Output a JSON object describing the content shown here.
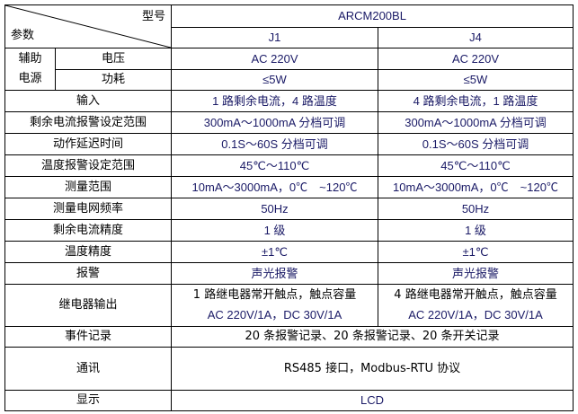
{
  "header": {
    "model_label": "型号",
    "param_label": "参数",
    "model": "ARCM200BL",
    "variants": [
      "J1",
      "J4"
    ]
  },
  "aux_power": {
    "group_label_1": "辅助",
    "group_label_2": "电源",
    "rows": [
      {
        "label": "电压",
        "j1": "AC 220V",
        "j4": "AC 220V"
      },
      {
        "label": "功耗",
        "j1": "≤5W",
        "j4": "≤5W"
      }
    ]
  },
  "rows": [
    {
      "label": "输入",
      "j1": "1 路剩余电流，4 路温度",
      "j4": "4 路剩余电流，1 路温度"
    },
    {
      "label": "剩余电流报警设定范围",
      "j1": "300mA～1000mA 分档可调",
      "j4": "300mA～1000mA 分档可调"
    },
    {
      "label": "动作延迟时间",
      "j1": "0.1S～60S 分档可调",
      "j4": "0.1S～60S 分档可调"
    },
    {
      "label": "温度报警设定范围",
      "j1": "45℃～110℃",
      "j4": "45℃～110℃"
    },
    {
      "label": "测量范围",
      "j1": "10mA～3000mA，0℃　~120℃",
      "j4": "10mA～3000mA，0℃　~120℃"
    },
    {
      "label": "测量电网频率",
      "j1": "50Hz",
      "j4": "50Hz"
    },
    {
      "label": "剩余电流精度",
      "j1": "1 级",
      "j4": "1 级"
    },
    {
      "label": "温度精度",
      "j1": "±1℃",
      "j4": "±1℃"
    },
    {
      "label": "报警",
      "j1": "声光报警",
      "j4": "声光报警"
    }
  ],
  "relay": {
    "label": "继电器输出",
    "j1_line1": "1 路继电器常开触点，触点容量",
    "j1_line2": "AC 220V/1A，DC  30V/1A",
    "j4_line1": "4 路继电器常开触点，触点容量",
    "j4_line2": "AC 220V/1A，DC  30V/1A"
  },
  "shared_rows": [
    {
      "label": "事件记录",
      "value": "20 条报警记录、20 条报警记录、20 条开关记录"
    },
    {
      "label": "通讯",
      "value": "RS485 接口，Modbus-RTU 协议"
    },
    {
      "label": "显示",
      "value": "LCD"
    }
  ]
}
